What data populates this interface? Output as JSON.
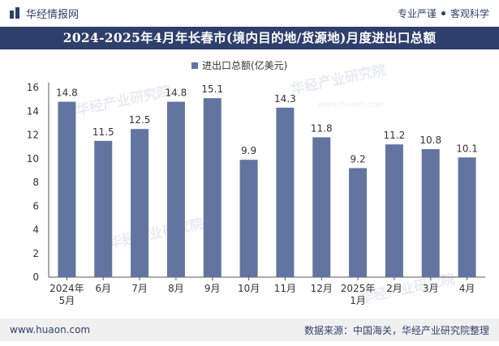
{
  "header": {
    "brand_name": "华经情报网",
    "tag_left": "专业严谨",
    "tag_right": "客观科学"
  },
  "footer": {
    "website": "www.huaon.com",
    "source": "数据来源：中国海关，华经产业研究院整理"
  },
  "watermark": {
    "text": "华经产业研究院",
    "url": "www.huaon.com"
  },
  "colors": {
    "bar": "#6274a0",
    "title_bg": "#2f3f6c",
    "brand": "#2f3f6c"
  },
  "chart_data": {
    "type": "bar",
    "title": "2024-2025年4月年长春市(境内目的地/货源地)月度进出口总额",
    "legend": "进出口总额(亿美元)",
    "categories": [
      "2024年\n5月",
      "6月",
      "7月",
      "8月",
      "9月",
      "10月",
      "11月",
      "12月",
      "2025年\n1月",
      "2月",
      "3月",
      "4月"
    ],
    "values": [
      14.8,
      11.5,
      12.5,
      14.8,
      15.1,
      9.9,
      14.3,
      11.8,
      9.2,
      11.2,
      10.8,
      10.1
    ],
    "ylim": [
      0,
      16
    ],
    "yticks": [
      0,
      2,
      4,
      6,
      8,
      10,
      12,
      14,
      16
    ],
    "xlabel": "",
    "ylabel": ""
  }
}
